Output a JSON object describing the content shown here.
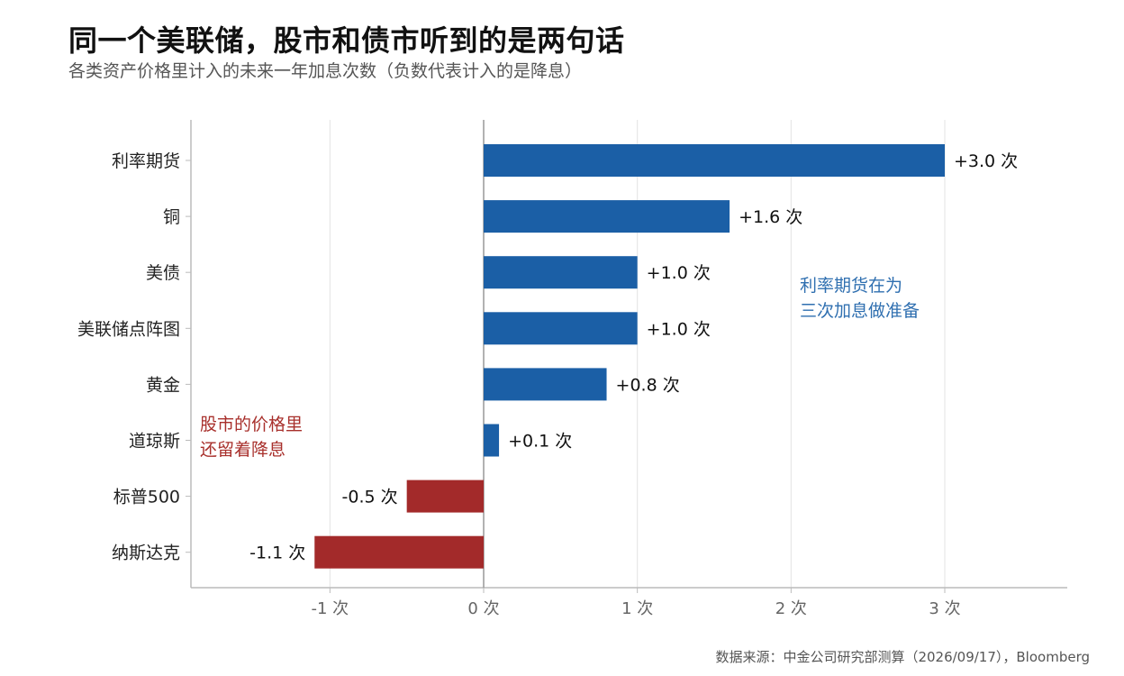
{
  "title": "同一个美联储，股市和债市听到的是两句话",
  "subtitle": "各类资产价格里计入的未来一年加息次数（负数代表计入的是降息）",
  "source": "数据来源：中金公司研究部测算（2026/09/17），Bloomberg",
  "colors": {
    "positive": "#1b5fa6",
    "negative": "#a32a2a",
    "grid": "#e3e3e3",
    "zero_line": "#999999",
    "axis": "#bbbbbb"
  },
  "chart_data": {
    "type": "bar",
    "orientation": "horizontal",
    "categories": [
      "利率期货",
      "铜",
      "美债",
      "美联储点阵图",
      "黄金",
      "道琼斯",
      "标普500",
      "纳斯达克"
    ],
    "values": [
      3.0,
      1.6,
      1.0,
      1.0,
      0.8,
      0.1,
      -0.5,
      -1.1
    ],
    "value_labels": [
      "+3.0 次",
      "+1.6 次",
      "+1.0 次",
      "+1.0 次",
      "+0.8 次",
      "+0.1 次",
      "-0.5 次",
      "-1.1 次"
    ],
    "x_ticks": [
      -1,
      0,
      1,
      2,
      3
    ],
    "x_tick_labels": [
      "-1 次",
      "0 次",
      "1 次",
      "2 次",
      "3 次"
    ],
    "xlim": [
      -1.9,
      3.8
    ],
    "grid": "vertical",
    "annotations": [
      {
        "lines": [
          "利率期货在为",
          "三次加息做准备"
        ],
        "color_key": "blue",
        "placement": "upper-right"
      },
      {
        "lines": [
          "股市的价格里",
          "还留着降息"
        ],
        "color_key": "red",
        "placement": "lower-left"
      }
    ]
  }
}
